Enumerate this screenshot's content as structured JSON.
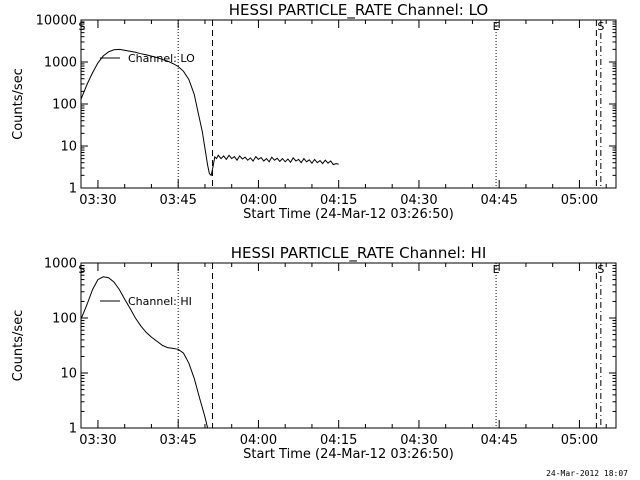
{
  "footer": {
    "timestamp": "24-Mar-2012 18:07"
  },
  "chart_data": [
    {
      "type": "line",
      "title": "HESSI PARTICLE_RATE Channel: LO",
      "xlabel": "Start Time (24-Mar-12 03:26:50)",
      "ylabel": "Counts/sec",
      "yscale": "log",
      "xlim": [
        "03:26:50",
        "05:06:50"
      ],
      "ylim": [
        1,
        10000
      ],
      "x_tick_labels": [
        "03:30",
        "03:45",
        "04:00",
        "04:15",
        "04:30",
        "04:45",
        "05:00"
      ],
      "y_tick_labels": [
        "1",
        "10",
        "100",
        "1000",
        "10000"
      ],
      "legend": {
        "position": "top-left",
        "entries": [
          "Channel: LO"
        ]
      },
      "markers": [
        {
          "label": "S",
          "time": "03:27:00",
          "style": "none"
        },
        {
          "time": "03:45:00",
          "style": "dotted"
        },
        {
          "time": "03:51:25",
          "style": "dashed"
        },
        {
          "label": "E",
          "time": "04:44:25",
          "style": "dotted"
        },
        {
          "time": "05:03:10",
          "style": "dashed"
        },
        {
          "label": "S",
          "time": "05:04:00",
          "style": "dash-dot"
        }
      ],
      "series": [
        {
          "name": "Channel: LO",
          "x": [
            "03:26:50",
            "03:28:00",
            "03:29:00",
            "03:30:00",
            "03:31:00",
            "03:32:00",
            "03:33:00",
            "03:34:00",
            "03:35:00",
            "03:36:00",
            "03:37:00",
            "03:38:00",
            "03:39:00",
            "03:40:00",
            "03:41:00",
            "03:42:00",
            "03:43:00",
            "03:44:00",
            "03:45:00",
            "03:46:00",
            "03:47:00",
            "03:48:00",
            "03:48:45",
            "03:49:30",
            "03:50:00",
            "03:50:30",
            "03:50:50",
            "03:51:10",
            "03:51:30",
            "03:51:50",
            "03:52:10",
            "03:52:30",
            "03:53:00",
            "03:53:30",
            "03:54:00",
            "03:54:30",
            "03:55:00",
            "03:55:30",
            "03:56:00",
            "03:56:30",
            "03:57:00",
            "03:57:30",
            "03:58:00",
            "03:58:30",
            "03:59:00",
            "03:59:30",
            "04:00:00",
            "04:00:30",
            "04:01:00",
            "04:01:30",
            "04:02:00",
            "04:02:30",
            "04:03:00",
            "04:03:30",
            "04:04:00",
            "04:04:30",
            "04:05:00",
            "04:05:30",
            "04:06:00",
            "04:06:30",
            "04:07:00",
            "04:07:30",
            "04:08:00",
            "04:08:30",
            "04:09:00",
            "04:09:30",
            "04:10:00",
            "04:10:30",
            "04:11:00",
            "04:11:30",
            "04:12:00",
            "04:12:30",
            "04:13:00",
            "04:13:30",
            "04:14:00",
            "04:14:30",
            "04:15:00"
          ],
          "y": [
            130,
            300,
            560,
            950,
            1400,
            1750,
            1950,
            2000,
            1900,
            1800,
            1700,
            1580,
            1480,
            1380,
            1280,
            1160,
            1050,
            920,
            780,
            600,
            380,
            170,
            60,
            22,
            9,
            3.5,
            2.2,
            2.0,
            3.2,
            5.5,
            5.0,
            6.0,
            5.0,
            5.8,
            4.8,
            6.0,
            5.0,
            5.6,
            4.6,
            5.8,
            4.9,
            5.4,
            4.6,
            5.2,
            4.4,
            5.6,
            4.8,
            5.3,
            4.4,
            5.0,
            4.2,
            5.4,
            4.6,
            5.1,
            4.3,
            5.0,
            4.2,
            4.9,
            4.1,
            5.2,
            4.4,
            4.8,
            4.0,
            5.0,
            4.2,
            4.7,
            3.9,
            4.8,
            4.0,
            4.5,
            3.8,
            4.6,
            3.9,
            4.4,
            3.6,
            3.8,
            3.7
          ]
        }
      ]
    },
    {
      "type": "line",
      "title": "HESSI PARTICLE_RATE Channel: HI",
      "xlabel": "Start Time (24-Mar-12 03:26:50)",
      "ylabel": "Counts/sec",
      "yscale": "log",
      "xlim": [
        "03:26:50",
        "05:06:50"
      ],
      "ylim": [
        1,
        1000
      ],
      "x_tick_labels": [
        "03:30",
        "03:45",
        "04:00",
        "04:15",
        "04:30",
        "04:45",
        "05:00"
      ],
      "y_tick_labels": [
        "1",
        "10",
        "100",
        "1000"
      ],
      "legend": {
        "position": "top-left",
        "entries": [
          "Channel: HI"
        ]
      },
      "markers": [
        {
          "label": "S",
          "time": "03:27:00",
          "style": "none"
        },
        {
          "time": "03:45:00",
          "style": "dotted"
        },
        {
          "time": "03:51:25",
          "style": "dashed"
        },
        {
          "label": "E",
          "time": "04:44:25",
          "style": "dotted"
        },
        {
          "time": "05:03:10",
          "style": "dashed"
        },
        {
          "label": "S",
          "time": "05:04:00",
          "style": "dash-dot"
        }
      ],
      "series": [
        {
          "name": "Channel: HI",
          "x": [
            "03:26:50",
            "03:28:00",
            "03:29:00",
            "03:30:00",
            "03:31:00",
            "03:32:00",
            "03:33:00",
            "03:34:00",
            "03:35:00",
            "03:36:00",
            "03:37:00",
            "03:38:00",
            "03:39:00",
            "03:40:00",
            "03:41:00",
            "03:42:00",
            "03:43:00",
            "03:44:00",
            "03:45:00",
            "03:46:00",
            "03:47:00",
            "03:48:00",
            "03:49:00",
            "03:50:00",
            "03:50:30"
          ],
          "y": [
            95,
            180,
            330,
            500,
            560,
            540,
            450,
            330,
            220,
            150,
            100,
            72,
            55,
            45,
            38,
            32,
            29,
            28,
            27,
            23,
            15,
            8,
            3.5,
            1.6,
            1.0
          ]
        }
      ]
    }
  ]
}
